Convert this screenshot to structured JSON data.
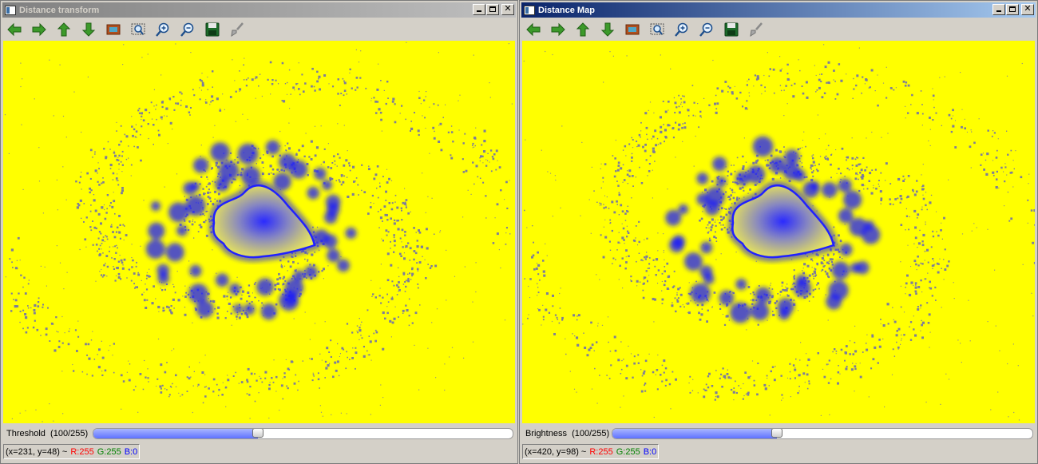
{
  "windows": [
    {
      "title": "Distance transform",
      "active": false,
      "trackbar": {
        "label": "Threshold",
        "value_text": "(100/255)",
        "value": 100,
        "max": 255
      },
      "status": {
        "coords": "(x=231, y=48) ~",
        "r": "R:255",
        "g": "G:255",
        "b": "B:0"
      }
    },
    {
      "title": "Distance Map",
      "active": true,
      "trackbar": {
        "label": "Brightness",
        "value_text": "(100/255)",
        "value": 100,
        "max": 255
      },
      "status": {
        "coords": "(x=420, y=98) ~",
        "r": "R:255",
        "g": "G:255",
        "b": "B:0"
      }
    }
  ],
  "toolbar_icons": [
    "arrow-left-icon",
    "arrow-right-icon",
    "arrow-up-icon",
    "arrow-down-icon",
    "fit-window-icon",
    "zoom-region-icon",
    "zoom-in-icon",
    "zoom-out-icon",
    "save-icon",
    "properties-brush-icon"
  ],
  "colors": {
    "background": "#ffff00",
    "contour": "#1a1aff",
    "speckle": "#7d7d9a"
  }
}
